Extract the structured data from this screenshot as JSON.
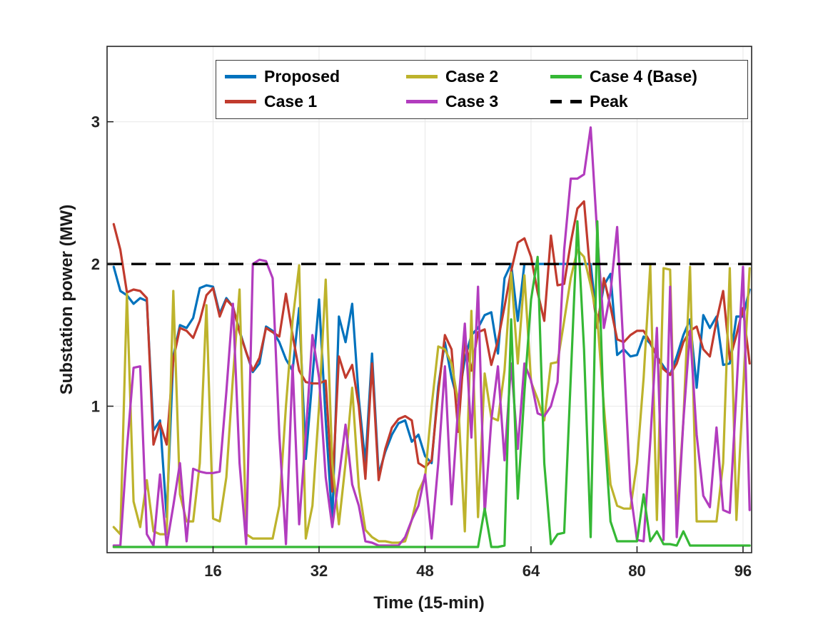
{
  "figure": {
    "x_axis_label": "Time (15-min)",
    "y_axis_label": "Substation power (MW)"
  },
  "legend": {
    "items": [
      {
        "label": "Proposed",
        "color": "#0072bd",
        "dashed": false
      },
      {
        "label": "Case 2",
        "color": "#bdb32c",
        "dashed": false
      },
      {
        "label": "Case 4 (Base)",
        "color": "#35b835",
        "dashed": false
      },
      {
        "label": "Case 1",
        "color": "#c13b2e",
        "dashed": false
      },
      {
        "label": "Case 3",
        "color": "#b23cbe",
        "dashed": false
      },
      {
        "label": "Peak",
        "color": "#000000",
        "dashed": true
      }
    ]
  },
  "chart_data": {
    "type": "line",
    "title": "",
    "xlabel": "Time (15-min)",
    "ylabel": "Substation power (MW)",
    "xlim": [
      0,
      97.3
    ],
    "ylim": [
      -0.03,
      3.53
    ],
    "grid": true,
    "legend_position": "top",
    "x_ticks": [
      16,
      32,
      48,
      64,
      80,
      96
    ],
    "y_ticks": [
      1,
      2,
      3
    ],
    "peak_line": {
      "name": "Peak",
      "value": 2.0,
      "color": "#000000",
      "dash": [
        21,
        13
      ]
    },
    "x": [
      1,
      2,
      3,
      4,
      5,
      6,
      7,
      8,
      9,
      10,
      11,
      12,
      13,
      14,
      15,
      16,
      17,
      18,
      19,
      20,
      21,
      22,
      23,
      24,
      25,
      26,
      27,
      28,
      29,
      30,
      31,
      32,
      33,
      34,
      35,
      36,
      37,
      38,
      39,
      40,
      41,
      42,
      43,
      44,
      45,
      46,
      47,
      48,
      49,
      50,
      51,
      52,
      53,
      54,
      55,
      56,
      57,
      58,
      59,
      60,
      61,
      62,
      63,
      64,
      65,
      66,
      67,
      68,
      69,
      70,
      71,
      72,
      73,
      74,
      75,
      76,
      77,
      78,
      79,
      80,
      81,
      82,
      83,
      84,
      85,
      86,
      87,
      88,
      89,
      90,
      91,
      92,
      93,
      94,
      95,
      96,
      97
    ],
    "series": [
      {
        "name": "Proposed",
        "color": "#0072bd",
        "values": [
          1.98,
          1.81,
          1.78,
          1.72,
          1.76,
          1.74,
          0.83,
          0.9,
          0.22,
          1.35,
          1.57,
          1.55,
          1.62,
          1.83,
          1.85,
          1.84,
          1.65,
          1.76,
          1.7,
          1.53,
          1.38,
          1.24,
          1.3,
          1.56,
          1.53,
          1.45,
          1.33,
          1.25,
          1.69,
          0.63,
          1.2,
          1.75,
          0.9,
          0.19,
          1.63,
          1.45,
          1.72,
          1.05,
          0.6,
          1.37,
          0.52,
          0.68,
          0.8,
          0.88,
          0.9,
          0.75,
          0.8,
          0.65,
          0.6,
          1.14,
          1.45,
          1.2,
          1.03,
          1.33,
          1.5,
          1.55,
          1.64,
          1.66,
          1.37,
          1.9,
          2.0,
          1.6,
          2.0,
          2.0,
          2.0,
          2.0,
          2.0,
          2.0,
          2.0,
          2.0,
          2.0,
          2.0,
          2.0,
          1.57,
          1.85,
          1.93,
          1.36,
          1.4,
          1.35,
          1.36,
          1.49,
          1.44,
          1.35,
          1.28,
          1.22,
          1.35,
          1.5,
          1.61,
          1.13,
          1.64,
          1.55,
          1.63,
          1.29,
          1.3,
          1.63,
          1.63,
          1.82
        ]
      },
      {
        "name": "Case 1",
        "color": "#c13b2e",
        "values": [
          2.28,
          2.1,
          1.8,
          1.82,
          1.81,
          1.76,
          0.73,
          0.88,
          0.73,
          1.33,
          1.55,
          1.53,
          1.48,
          1.6,
          1.78,
          1.83,
          1.63,
          1.75,
          1.7,
          1.52,
          1.38,
          1.25,
          1.34,
          1.55,
          1.52,
          1.49,
          1.79,
          1.5,
          1.25,
          1.17,
          1.16,
          1.16,
          1.18,
          0.4,
          1.35,
          1.2,
          1.29,
          1.0,
          0.49,
          1.3,
          0.48,
          0.7,
          0.85,
          0.91,
          0.93,
          0.9,
          0.6,
          0.57,
          0.62,
          1.1,
          1.5,
          1.4,
          0.82,
          1.47,
          1.25,
          1.52,
          1.54,
          1.29,
          1.46,
          1.7,
          1.95,
          2.15,
          2.18,
          2.05,
          1.8,
          1.6,
          2.2,
          1.85,
          1.86,
          2.15,
          2.39,
          2.44,
          1.9,
          1.55,
          1.9,
          1.7,
          1.47,
          1.45,
          1.5,
          1.53,
          1.53,
          1.45,
          1.35,
          1.26,
          1.22,
          1.3,
          1.45,
          1.53,
          1.56,
          1.4,
          1.35,
          1.6,
          1.81,
          1.33,
          1.5,
          1.69,
          1.3
        ]
      },
      {
        "name": "Case 2",
        "color": "#bdb32c",
        "values": [
          0.15,
          0.1,
          1.79,
          0.33,
          0.15,
          0.48,
          0.12,
          0.1,
          0.1,
          1.81,
          0.38,
          0.19,
          0.19,
          0.6,
          1.71,
          0.21,
          0.19,
          0.5,
          1.2,
          1.82,
          0.1,
          0.07,
          0.07,
          0.07,
          0.07,
          0.3,
          1.0,
          1.6,
          1.99,
          0.07,
          0.3,
          1.0,
          1.89,
          0.6,
          0.17,
          0.6,
          1.13,
          0.43,
          0.13,
          0.08,
          0.05,
          0.05,
          0.04,
          0.04,
          0.05,
          0.2,
          0.4,
          0.5,
          1.0,
          1.42,
          1.4,
          1.3,
          1.03,
          0.12,
          1.67,
          0.22,
          1.23,
          0.92,
          0.9,
          1.25,
          1.94,
          1.3,
          1.92,
          1.17,
          1.05,
          0.9,
          1.3,
          1.31,
          1.6,
          1.9,
          2.1,
          2.05,
          1.85,
          1.62,
          1.0,
          0.45,
          0.3,
          0.28,
          0.28,
          0.6,
          1.2,
          1.99,
          0.2,
          1.97,
          1.96,
          0.2,
          0.9,
          1.98,
          0.19,
          0.19,
          0.19,
          0.19,
          0.6,
          1.97,
          0.2,
          1.1,
          1.97
        ]
      },
      {
        "name": "Case 3",
        "color": "#b23cbe",
        "values": [
          0.02,
          0.02,
          0.7,
          1.27,
          1.28,
          0.1,
          0.02,
          0.52,
          0.02,
          0.3,
          0.6,
          0.05,
          0.56,
          0.54,
          0.53,
          0.53,
          0.54,
          1.1,
          1.72,
          0.6,
          0.03,
          2.0,
          2.03,
          2.02,
          1.9,
          0.8,
          0.03,
          1.29,
          0.17,
          0.8,
          1.5,
          1.2,
          0.5,
          0.15,
          0.5,
          0.87,
          0.45,
          0.3,
          0.05,
          0.04,
          0.02,
          0.02,
          0.02,
          0.02,
          0.08,
          0.2,
          0.3,
          0.52,
          0.07,
          0.6,
          1.28,
          0.31,
          1.0,
          1.58,
          0.78,
          1.84,
          0.24,
          0.9,
          1.28,
          0.62,
          1.3,
          0.7,
          1.3,
          1.18,
          0.95,
          0.93,
          1.0,
          1.17,
          2.1,
          2.6,
          2.6,
          2.63,
          2.96,
          2.2,
          1.55,
          1.8,
          2.26,
          1.36,
          0.4,
          0.06,
          0.05,
          0.75,
          1.55,
          0.06,
          1.84,
          0.08,
          0.9,
          1.53,
          0.8,
          0.37,
          0.29,
          0.85,
          0.27,
          0.25,
          1.1,
          1.98,
          0.27
        ]
      },
      {
        "name": "Case 4 (Base)",
        "color": "#35b835",
        "values": [
          0.01,
          0.01,
          0.01,
          0.01,
          0.01,
          0.01,
          0.01,
          0.01,
          0.01,
          0.01,
          0.01,
          0.01,
          0.01,
          0.01,
          0.01,
          0.01,
          0.01,
          0.01,
          0.01,
          0.01,
          0.01,
          0.01,
          0.01,
          0.01,
          0.01,
          0.01,
          0.01,
          0.01,
          0.01,
          0.01,
          0.01,
          0.01,
          0.01,
          0.01,
          0.01,
          0.01,
          0.01,
          0.01,
          0.01,
          0.01,
          0.01,
          0.01,
          0.01,
          0.01,
          0.01,
          0.01,
          0.01,
          0.01,
          0.01,
          0.01,
          0.01,
          0.01,
          0.01,
          0.01,
          0.01,
          0.01,
          0.28,
          0.01,
          0.01,
          0.02,
          1.61,
          0.35,
          1.1,
          1.75,
          2.05,
          0.6,
          0.03,
          0.1,
          0.11,
          1.2,
          2.3,
          1.4,
          0.08,
          2.3,
          0.9,
          0.19,
          0.05,
          0.05,
          0.05,
          0.05,
          0.38,
          0.05,
          0.12,
          0.03,
          0.03,
          0.02,
          0.12,
          0.02,
          0.02,
          0.02,
          0.02,
          0.02,
          0.02,
          0.02,
          0.02,
          0.02,
          0.02
        ]
      }
    ]
  }
}
